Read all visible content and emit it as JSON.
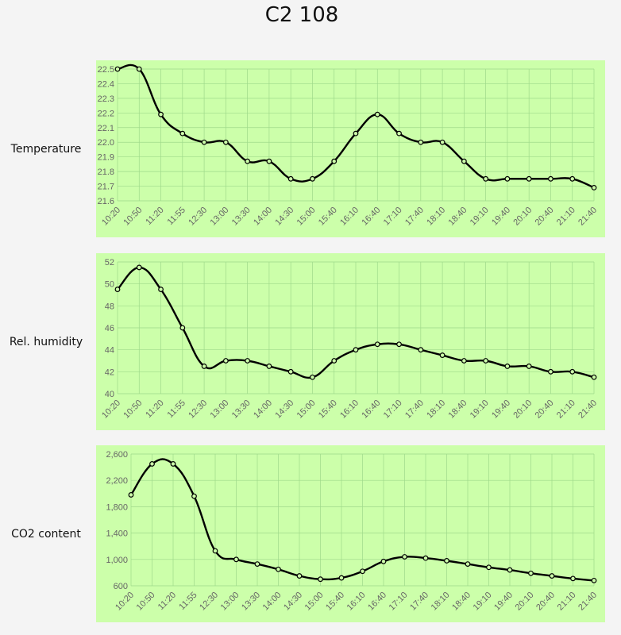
{
  "page": {
    "title": "C2 108"
  },
  "colors": {
    "panel_bg": "#ccffaa",
    "line": "#000000",
    "grid": "#9ed98a",
    "tick_text": "#666666"
  },
  "chart_data": [
    {
      "type": "line",
      "row_label": "Temperature",
      "categories": [
        "10:20",
        "10:50",
        "11:20",
        "11:55",
        "12:30",
        "13:00",
        "13:30",
        "14:00",
        "14:30",
        "15:00",
        "15:40",
        "16:10",
        "16:40",
        "17:10",
        "17:40",
        "18:10",
        "18:40",
        "19:10",
        "19:40",
        "20:10",
        "20:40",
        "21:10",
        "21:40"
      ],
      "values": [
        22.5,
        22.5,
        22.19,
        22.06,
        22.0,
        22.0,
        21.87,
        21.87,
        21.75,
        21.75,
        21.87,
        22.06,
        22.19,
        22.06,
        22.0,
        22.0,
        21.87,
        21.75,
        21.75,
        21.75,
        21.75,
        21.75,
        21.69
      ],
      "ylim": [
        21.6,
        22.5
      ],
      "yticks": [
        "21.6",
        "21.7",
        "21.8",
        "21.9",
        "22.0",
        "22.1",
        "22.2",
        "22.3",
        "22.4",
        "22.5"
      ],
      "grid": true
    },
    {
      "type": "line",
      "row_label": "Rel. humidity",
      "categories": [
        "10:20",
        "10:50",
        "11:20",
        "11:55",
        "12:30",
        "13:00",
        "13:30",
        "14:00",
        "14:30",
        "15:00",
        "15:40",
        "16:10",
        "16:40",
        "17:10",
        "17:40",
        "18:10",
        "18:40",
        "19:10",
        "19:40",
        "20:10",
        "20:40",
        "21:10",
        "21:40"
      ],
      "values": [
        49.5,
        51.5,
        49.5,
        46.0,
        42.5,
        43.0,
        43.0,
        42.5,
        42.0,
        41.5,
        43.0,
        44.0,
        44.5,
        44.5,
        44.0,
        43.5,
        43.0,
        43.0,
        42.5,
        42.5,
        42.0,
        42.0,
        41.5
      ],
      "ylim": [
        40,
        52
      ],
      "yticks": [
        "40",
        "42",
        "44",
        "46",
        "48",
        "50",
        "52"
      ],
      "grid": true
    },
    {
      "type": "line",
      "row_label": "CO2 content",
      "categories": [
        "10:20",
        "10:50",
        "11:20",
        "11:55",
        "12:30",
        "13:00",
        "13:30",
        "14:00",
        "14:30",
        "15:00",
        "15:40",
        "16:10",
        "16:40",
        "17:10",
        "17:40",
        "18:10",
        "18:40",
        "19:10",
        "19:40",
        "20:10",
        "20:40",
        "21:10",
        "21:40"
      ],
      "values": [
        1980,
        2450,
        2450,
        1960,
        1130,
        1000,
        930,
        850,
        750,
        700,
        720,
        820,
        970,
        1040,
        1020,
        980,
        930,
        880,
        840,
        790,
        750,
        710,
        680
      ],
      "ylim": [
        600,
        2600
      ],
      "yticks": [
        "600",
        "1,000",
        "1,400",
        "1,800",
        "2,200",
        "2,600"
      ],
      "grid": true
    }
  ]
}
